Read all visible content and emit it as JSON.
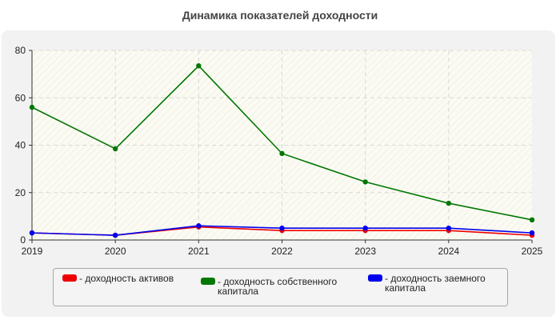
{
  "chart_data": {
    "type": "line",
    "title": "Динамика показателей доходности",
    "xlabel": "",
    "ylabel": "",
    "categories": [
      "2019",
      "2020",
      "2021",
      "2022",
      "2023",
      "2024",
      "2025"
    ],
    "ylim": [
      0,
      80
    ],
    "yticks": [
      0,
      20,
      40,
      60,
      80
    ],
    "grid": true,
    "legend_position": "bottom",
    "series": [
      {
        "name": "- доходность активов",
        "color": "#ee0000",
        "values": [
          3,
          2,
          5.5,
          4,
          4,
          4,
          2
        ]
      },
      {
        "name": "- доходность собственного\nкапитала",
        "color": "#007700",
        "values": [
          56,
          38.5,
          73.5,
          36.5,
          24.5,
          15.5,
          8.5
        ]
      },
      {
        "name": "- доходность заемного\nкапитала",
        "color": "#0000ee",
        "values": [
          3,
          2,
          6,
          5,
          5,
          5,
          3
        ]
      }
    ]
  }
}
